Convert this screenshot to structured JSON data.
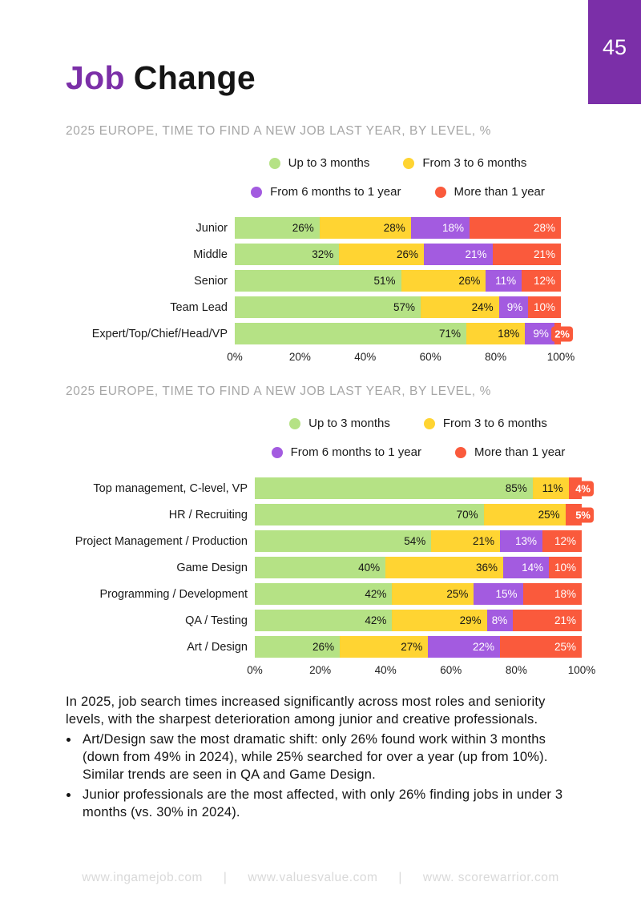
{
  "page": {
    "number": "45",
    "title": {
      "accent": "Job",
      "rest": "Change"
    },
    "footer_links": [
      "www.ingamejob.com",
      "www.valuesvalue.com",
      "www. scorewarrior.com"
    ]
  },
  "colors": {
    "accent_purple": "#7B2FA8",
    "series": [
      "#B5E285",
      "#FFD432",
      "#A35BE0",
      "#FA5A3C"
    ],
    "chart_title_gray": "#A6A6A6",
    "footer_gray": "#D9D9D9"
  },
  "chart_data": [
    {
      "type": "bar",
      "orientation": "horizontal",
      "stacked": true,
      "title": "2025 EUROPE, TIME TO FIND A NEW JOB LAST YEAR, BY LEVEL, %",
      "legend_position": "top-center",
      "categories": [
        "Junior",
        "Middle",
        "Senior",
        "Team Lead",
        "Expert/Top/Chief/Head/VP"
      ],
      "series": [
        {
          "name": "Up to 3 months",
          "values": [
            26,
            32,
            51,
            57,
            71
          ]
        },
        {
          "name": "From 3 to 6 months",
          "values": [
            28,
            26,
            26,
            24,
            18
          ]
        },
        {
          "name": "From 6 months to 1 year",
          "values": [
            18,
            21,
            11,
            9,
            9
          ]
        },
        {
          "name": "More than 1 year",
          "values": [
            28,
            21,
            12,
            10,
            2
          ]
        }
      ],
      "xlim": [
        0,
        100
      ],
      "x_ticks": [
        "0%",
        "20%",
        "40%",
        "60%",
        "80%",
        "100%"
      ]
    },
    {
      "type": "bar",
      "orientation": "horizontal",
      "stacked": true,
      "title": "2025 EUROPE, TIME TO FIND A NEW JOB LAST YEAR, BY LEVEL, %",
      "legend_position": "top-center",
      "categories": [
        "Top management, C-level, VP",
        "HR / Recruiting",
        "Project Management / Production",
        "Game Design",
        "Programming / Development",
        "QA / Testing",
        "Art / Design"
      ],
      "series": [
        {
          "name": "Up to 3 months",
          "values": [
            85,
            70,
            54,
            40,
            42,
            42,
            26
          ]
        },
        {
          "name": "From 3 to 6 months",
          "values": [
            11,
            25,
            21,
            36,
            25,
            29,
            27
          ]
        },
        {
          "name": "From 6 months to 1 year",
          "values": [
            0,
            0,
            13,
            14,
            15,
            8,
            22
          ]
        },
        {
          "name": "More than 1 year",
          "values": [
            4,
            5,
            12,
            10,
            18,
            21,
            25
          ]
        }
      ],
      "xlim": [
        0,
        100
      ],
      "x_ticks": [
        "0%",
        "20%",
        "40%",
        "60%",
        "80%",
        "100%"
      ]
    }
  ],
  "body": {
    "intro": "In 2025, job search times increased significantly across most roles and seniority levels, with the sharpest deterioration among junior and creative professionals.",
    "bullets": [
      "Art/Design saw the most dramatic shift: only 26% found work within 3 months (down from 49% in 2024), while 25% searched for over a year (up from 10%). Similar trends are seen in QA and Game Design.",
      "Junior professionals are the most affected, with only 26% finding jobs in under 3 months (vs. 30% in 2024)."
    ]
  }
}
